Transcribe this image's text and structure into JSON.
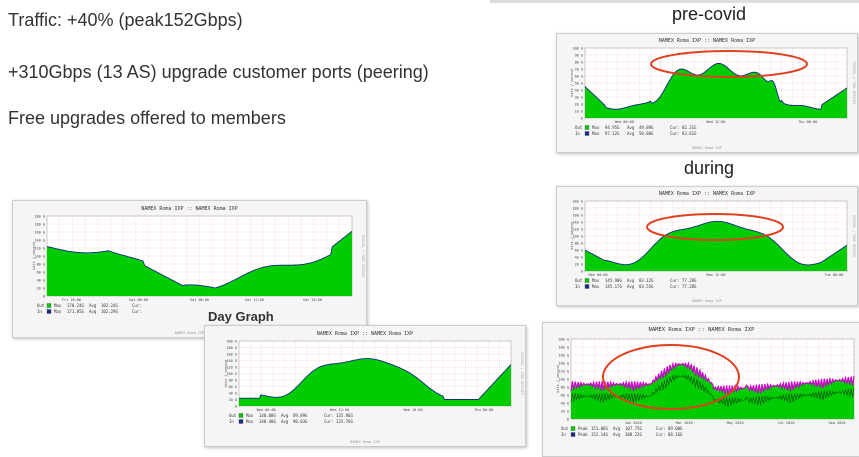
{
  "bullets": [
    "Traffic: +40% (peak152Gbps)",
    "+310Gbps (13 AS) upgrade customer ports (peering)",
    "Free upgrades offered to members"
  ],
  "labels": {
    "pre_covid": "pre-covid",
    "during": "during",
    "day_graph": "Day Graph"
  },
  "colors": {
    "fill": "#00cc00",
    "outline": "#1a2a8a",
    "peak": "#cc00cc",
    "circle": "#e04020"
  },
  "graphs": {
    "pre_covid": {
      "title": "NAMEX Roma IXP :: NAMEX Roma IXP",
      "y_ticks": [
        "100 G",
        "90 G",
        "80 G",
        "70 G",
        "60 G",
        "50 G",
        "40 G",
        "30 G",
        "20 G",
        "10 G",
        "0"
      ],
      "x_ticks": [
        "Wed 00:00",
        "Wed 12:00",
        "Thu 00:00"
      ],
      "ylabel": "bits / second",
      "legend": [
        {
          "dir": "Out",
          "kind": "Max",
          "v1": "94.95G",
          "a": "Avg",
          "v2": "49.89G",
          "c": "Cur:",
          "v3": "82.31G"
        },
        {
          "dir": "In",
          "kind": "Max",
          "v1": "97.12G",
          "a": "Avg",
          "v2": "50.88G",
          "c": "Cur:",
          "v3": "83.61G"
        }
      ],
      "footer": "NAMEX Roma IXP",
      "side_text": "RRDTOOL / TOBI OETIKER"
    },
    "during": {
      "title": "NAMEX Roma IXP :: NAMEX Roma IXP",
      "y_ticks": [
        "200 G",
        "180 G",
        "160 G",
        "140 G",
        "120 G",
        "100 G",
        "80 G",
        "60 G",
        "40 G",
        "20 G",
        "0"
      ],
      "x_ticks": [
        "Mon 00:00",
        "Mon 12:00",
        "Tue 00:00"
      ],
      "ylabel": "bits / second",
      "legend": [
        {
          "dir": "Out",
          "kind": "Max",
          "v1": "145.90G",
          "a": "Avg",
          "v2": "83.12G",
          "c": "Cur:",
          "v3": "77.28G"
        },
        {
          "dir": "In",
          "kind": "Max",
          "v1": "145.17G",
          "a": "Avg",
          "v2": "83.55G",
          "c": "Cur:",
          "v3": "77.28G"
        }
      ],
      "footer": "NAMEX Roma IXP",
      "side_text": "RRDTOOL / TOBI OETIKER"
    },
    "left": {
      "title": "NAMEX Roma IXP :: NAMEX Roma IXP",
      "y_ticks": [
        "200 G",
        "180 G",
        "160 G",
        "140 G",
        "120 G",
        "100 G",
        "80 G",
        "60 G",
        "40 G",
        "20 G",
        "0"
      ],
      "x_ticks": [
        "Fri 18:00",
        "Sat 00:00",
        "Sat 06:00",
        "Sat 12:00",
        "Sat 18:00"
      ],
      "ylabel": "bits / second",
      "legend": [
        {
          "dir": "Out",
          "kind": "Max",
          "v1": "170.24G",
          "a": "Avg",
          "v2": "102.24G",
          "c": "Cur:",
          "v3": ""
        },
        {
          "dir": "In",
          "kind": "Max",
          "v1": "171.85G",
          "a": "Avg",
          "v2": "102.29G",
          "c": "Cur:",
          "v3": ""
        }
      ],
      "footer": "NAMEX Roma IXP",
      "side_text": "RRDTOOL / TOBI OETIKER"
    },
    "day": {
      "title": "NAMEX Roma IXP :: NAMEX Roma IXP",
      "y_ticks": [
        "200 G",
        "180 G",
        "160 G",
        "140 G",
        "120 G",
        "100 G",
        "80 G",
        "60 G",
        "40 G",
        "20 G",
        "0"
      ],
      "x_ticks": [
        "Wed 06:00",
        "Wed 12:00",
        "Wed 18:00",
        "Thu 00:00"
      ],
      "ylabel": "bits / second",
      "legend": [
        {
          "dir": "Out",
          "kind": "Max",
          "v1": "148.08G",
          "a": "Avg",
          "v2": "89.89G",
          "c": "Cur:",
          "v3": "135.96G"
        },
        {
          "dir": "In",
          "kind": "Max",
          "v1": "148.48G",
          "a": "Avg",
          "v2": "90.03G",
          "c": "Cur:",
          "v3": "135.76G"
        }
      ],
      "footer": "NAMEX Roma IXP",
      "side_text": "RRDTOOL / TOBI OETIKER"
    },
    "year": {
      "title": "NAMEX Roma IXP :: NAMEX Roma IXP",
      "y_ticks": [
        "200 G",
        "180 G",
        "160 G",
        "140 G",
        "120 G",
        "100 G",
        "80 G",
        "60 G",
        "40 G",
        "20 G",
        "0"
      ],
      "x_ticks": [
        "Jan 2020",
        "Mar 2020",
        "May 2020",
        "Jul 2020",
        "Sep 2020"
      ],
      "ylabel": "bits / second",
      "legend": [
        {
          "dir": "Out",
          "kind": "Peak",
          "v1": "151.86G",
          "a": "Avg",
          "v2": "107.75G",
          "c": "Cur:",
          "v3": "89.00G"
        },
        {
          "dir": "In",
          "kind": "Peak",
          "v1": "152.14G",
          "a": "Avg",
          "v2": "108.22G",
          "c": "Cur:",
          "v3": "88.16G"
        }
      ],
      "footer": "",
      "side_text": ""
    }
  }
}
